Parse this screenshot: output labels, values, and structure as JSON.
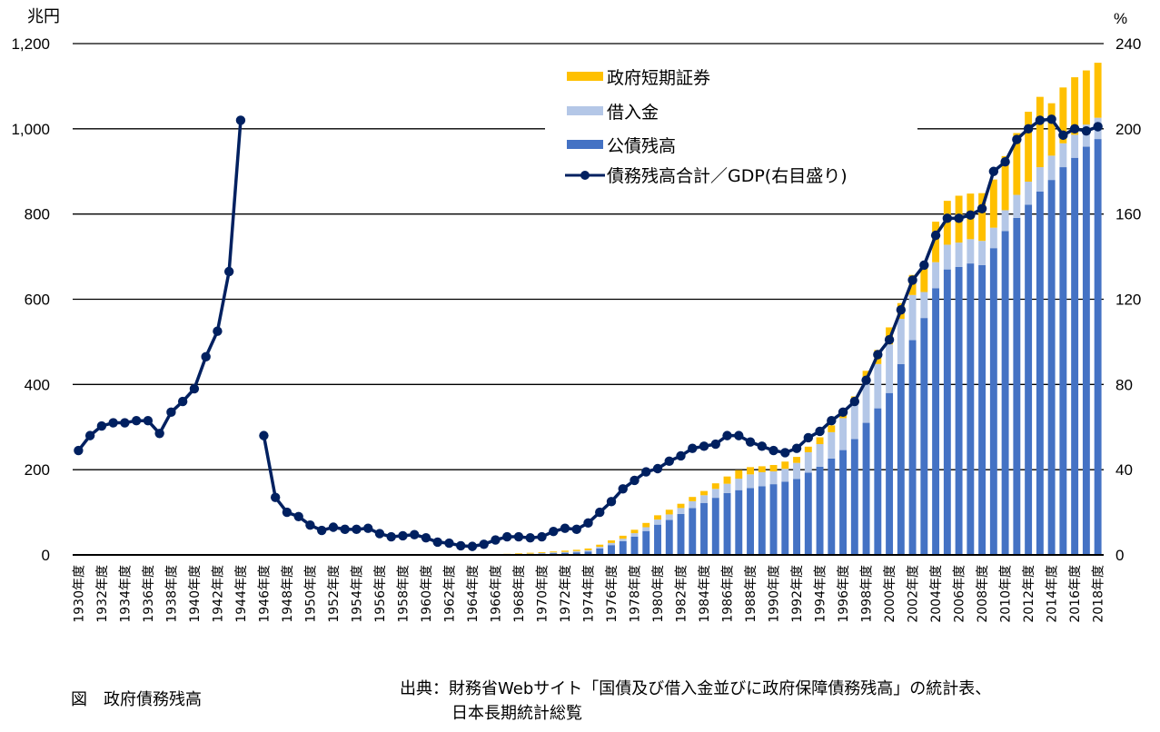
{
  "chart_data": {
    "type": "bar+line",
    "title": "政府債務残高",
    "figure_label": "図",
    "left_axis": {
      "unit": "兆円",
      "ylim": [
        0,
        1200
      ],
      "ticks": [
        "0",
        "200",
        "400",
        "600",
        "800",
        "1,000",
        "1,200"
      ],
      "tick_values": [
        0,
        200,
        400,
        600,
        800,
        1000,
        1200
      ]
    },
    "right_axis": {
      "unit": "%",
      "ylim": [
        0,
        240
      ],
      "ticks": [
        "0",
        "40",
        "80",
        "120",
        "160",
        "200",
        "240"
      ],
      "tick_values": [
        0,
        40,
        80,
        120,
        160,
        200,
        240
      ]
    },
    "grid": true,
    "legend_position": "top-right",
    "x_label_suffix": "年度",
    "x": [
      1930,
      1931,
      1932,
      1933,
      1934,
      1935,
      1936,
      1937,
      1938,
      1939,
      1940,
      1941,
      1942,
      1943,
      1944,
      1945,
      1946,
      1947,
      1948,
      1949,
      1950,
      1951,
      1952,
      1953,
      1954,
      1955,
      1956,
      1957,
      1958,
      1959,
      1960,
      1961,
      1962,
      1963,
      1964,
      1965,
      1966,
      1967,
      1968,
      1969,
      1970,
      1971,
      1972,
      1973,
      1974,
      1975,
      1976,
      1977,
      1978,
      1979,
      1980,
      1981,
      1982,
      1983,
      1984,
      1985,
      1986,
      1987,
      1988,
      1989,
      1990,
      1991,
      1992,
      1993,
      1994,
      1995,
      1996,
      1997,
      1998,
      1999,
      2000,
      2001,
      2002,
      2003,
      2004,
      2005,
      2006,
      2007,
      2008,
      2009,
      2010,
      2011,
      2012,
      2013,
      2014,
      2015,
      2016,
      2017,
      2018
    ],
    "tick_labels": [
      "1930年度",
      "1932年度",
      "1934年度",
      "1936年度",
      "1938年度",
      "1940年度",
      "1942年度",
      "1944年度",
      "1946年度",
      "1948年度",
      "1950年度",
      "1952年度",
      "1954年度",
      "1956年度",
      "1958年度",
      "1960年度",
      "1962年度",
      "1964年度",
      "1966年度",
      "1968年度",
      "1970年度",
      "1972年度",
      "1974年度",
      "1976年度",
      "1978年度",
      "1980年度",
      "1982年度",
      "1984年度",
      "1986年度",
      "1988年度",
      "1990年度",
      "1992年度",
      "1994年度",
      "1996年度",
      "1998年度",
      "2000年度",
      "2002年度",
      "2004年度",
      "2006年度",
      "2008年度",
      "2010年度",
      "2012年度",
      "2014年度",
      "2016年度",
      "2018年度"
    ],
    "tick_years": [
      1930,
      1932,
      1934,
      1936,
      1938,
      1940,
      1942,
      1944,
      1946,
      1948,
      1950,
      1952,
      1954,
      1956,
      1958,
      1960,
      1962,
      1964,
      1966,
      1968,
      1970,
      1972,
      1974,
      1976,
      1978,
      1980,
      1982,
      1984,
      1986,
      1988,
      1990,
      1992,
      1994,
      1996,
      1998,
      2000,
      2002,
      2004,
      2006,
      2008,
      2010,
      2012,
      2014,
      2016,
      2018
    ],
    "bar_series": [
      {
        "name": "公債残高",
        "color": "#4472c4",
        "axis": "left",
        "values": [
          0,
          0,
          0,
          0,
          0,
          0,
          0,
          0,
          0,
          0,
          0,
          0,
          0,
          0,
          0,
          0,
          0,
          0,
          0,
          0,
          0,
          0,
          0,
          0,
          0,
          0,
          0,
          0,
          0,
          0,
          0,
          0,
          0,
          0,
          0,
          0,
          0.5,
          1,
          1.5,
          2,
          3,
          4,
          5,
          6,
          8,
          15,
          23,
          32,
          43,
          56,
          71,
          82,
          96,
          110,
          122,
          134,
          145,
          152,
          157,
          161,
          166,
          172,
          178,
          193,
          207,
          226,
          246,
          272,
          310,
          344,
          380,
          448,
          504,
          556,
          626,
          670,
          676,
          684,
          680,
          720,
          760,
          791,
          822,
          853,
          880,
          910,
          932,
          958,
          976
        ],
        "stack": 0
      },
      {
        "name": "借入金",
        "color": "#b4c7e7",
        "axis": "left",
        "values": [
          0,
          0,
          0,
          0,
          0,
          0,
          0,
          0,
          0,
          0,
          0,
          0,
          0,
          0,
          0,
          0,
          0,
          0,
          0,
          0,
          0,
          0,
          0,
          0,
          0,
          0,
          0,
          0,
          0,
          0,
          0,
          0,
          0,
          0,
          0,
          0,
          0.5,
          0.5,
          1,
          1,
          1.5,
          2,
          2,
          3,
          3,
          4,
          5,
          6,
          8,
          9,
          12,
          13,
          14,
          16,
          18,
          21,
          22,
          27,
          32,
          33,
          30,
          30,
          38,
          48,
          53,
          62,
          75,
          85,
          99,
          104,
          114,
          106,
          106,
          61,
          61,
          58,
          57,
          57,
          57,
          48,
          49,
          54,
          54,
          57,
          57,
          56,
          54,
          52,
          50
        ],
        "stack": 1
      },
      {
        "name": "政府短期証券",
        "color": "#ffc000",
        "axis": "left",
        "values": [
          0,
          0,
          0,
          0,
          0,
          0,
          0,
          0,
          0,
          0,
          0,
          0,
          0,
          0,
          0,
          0,
          0,
          0,
          0,
          0,
          0,
          0,
          0,
          0,
          0,
          0,
          0,
          0,
          0,
          0,
          0,
          0,
          0,
          0,
          0,
          0,
          1,
          1,
          1.5,
          2,
          2,
          2,
          3,
          3,
          4,
          5,
          6,
          7,
          8,
          10,
          10,
          11,
          10,
          10,
          10,
          13,
          17,
          20,
          17,
          14,
          15,
          17,
          14,
          13,
          16,
          16,
          14,
          15,
          23,
          33,
          40,
          37,
          47,
          56,
          95,
          103,
          110,
          107,
          112,
          113,
          127,
          145,
          164,
          165,
          123,
          131,
          135,
          127,
          129
        ],
        "stack": 2
      },
      {
        "name": "債務残高合計／GDP（右目盛り）",
        "type": "line",
        "color": "#002060",
        "axis": "right",
        "values": [
          49,
          56,
          60.5,
          62,
          62,
          63,
          63,
          57,
          67,
          72,
          78,
          93,
          105,
          133,
          204,
          null,
          56,
          27,
          20,
          18,
          14,
          11.5,
          13,
          12,
          12,
          12.5,
          10,
          8.5,
          9,
          9.5,
          8,
          6,
          5.5,
          4.3,
          4,
          5,
          7,
          8.5,
          8.5,
          8,
          8.5,
          11,
          12.5,
          12,
          15,
          20,
          25,
          31,
          35,
          39,
          40.5,
          44,
          46.5,
          50,
          51,
          52,
          56,
          56,
          53,
          51,
          49,
          48,
          50,
          55,
          58,
          63,
          67,
          72,
          82,
          94,
          101,
          115,
          129,
          136,
          150,
          158,
          158,
          159.5,
          162.5,
          180,
          184.5,
          195,
          200,
          204,
          204.5,
          197,
          200,
          199,
          201
        ]
      }
    ],
    "legend": [
      {
        "label": "政府短期証券",
        "color": "#ffc000",
        "kind": "box"
      },
      {
        "label": "借入金",
        "color": "#b4c7e7",
        "kind": "box"
      },
      {
        "label": "公債残高",
        "color": "#4472c4",
        "kind": "box"
      },
      {
        "label": "債務残高合計／GDP(右目盛り)",
        "color": "#002060",
        "kind": "line"
      }
    ]
  },
  "captions": {
    "figure_title": "図　政府債務残高",
    "source_line1": "出典：財務省Webサイト「国債及び借入金並びに政府保障債務残高」の統計表、",
    "source_line2": "日本長期統計総覧"
  }
}
